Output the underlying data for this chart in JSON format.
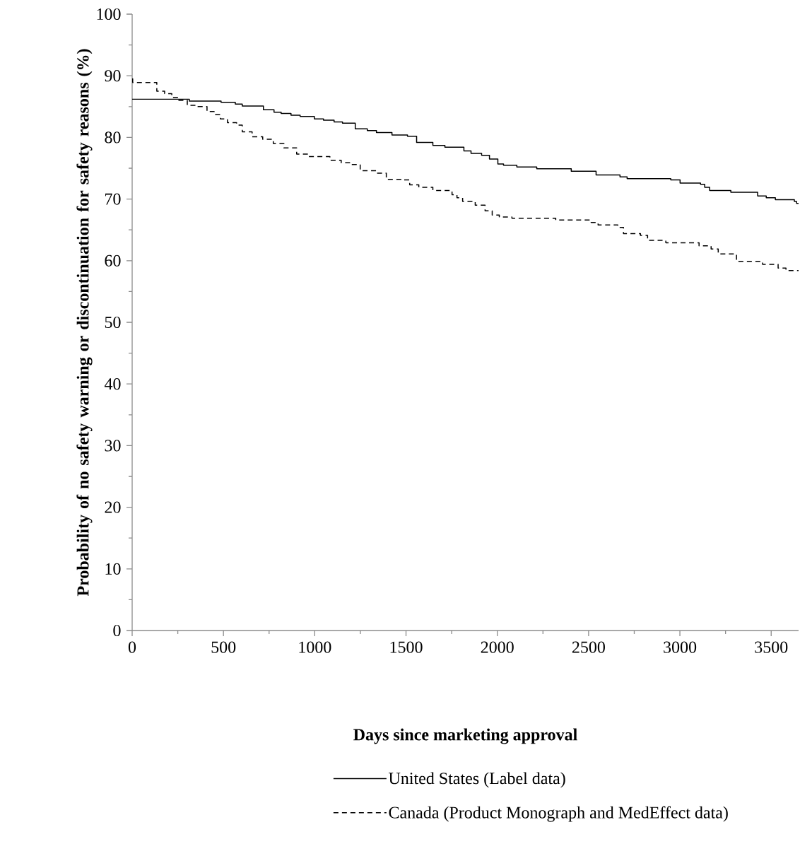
{
  "chart_data": {
    "type": "step",
    "xlabel": "Days since marketing approval",
    "ylabel": "Probability of no safety warning or discontinuation for safety reasons (%)",
    "xlim": [
      0,
      3650
    ],
    "ylim": [
      0,
      100
    ],
    "xticks": [
      0,
      {
        "value": 250,
        "label": null
      },
      500,
      {
        "value": 750,
        "label": null
      },
      1000,
      {
        "value": 1250,
        "label": null
      },
      1500,
      {
        "value": 1750,
        "label": null
      },
      2000,
      {
        "value": 2250,
        "label": null
      },
      2500,
      {
        "value": 2750,
        "label": null
      },
      3000,
      {
        "value": 3250,
        "label": null
      },
      3500
    ],
    "yticks": [
      0,
      {
        "value": 5,
        "label": null
      },
      10,
      {
        "value": 15,
        "label": null
      },
      20,
      {
        "value": 25,
        "label": null
      },
      30,
      {
        "value": 35,
        "label": null
      },
      40,
      {
        "value": 45,
        "label": null
      },
      50,
      {
        "value": 55,
        "label": null
      },
      60,
      {
        "value": 65,
        "label": null
      },
      70,
      {
        "value": 75,
        "label": null
      },
      80,
      {
        "value": 85,
        "label": null
      },
      90,
      {
        "value": 95,
        "label": null
      },
      100
    ],
    "grid": false,
    "legend": "bottom",
    "marker": "none",
    "series": [
      {
        "name": "United States (Label data)",
        "color": "#000000",
        "line_style": "solid",
        "x": [
          0,
          313,
          487,
          565,
          603,
          719,
          777,
          816,
          870,
          920,
          998,
          1048,
          1106,
          1152,
          1222,
          1288,
          1338,
          1423,
          1508,
          1558,
          1647,
          1713,
          1817,
          1856,
          1914,
          1957,
          2003,
          2034,
          2107,
          2216,
          2405,
          2541,
          2672,
          2711,
          2950,
          3001,
          3113,
          3136,
          3163,
          3279,
          3426,
          3473,
          3523,
          3627,
          3639,
          3650
        ],
        "values": [
          86.2,
          85.9,
          85.7,
          85.4,
          85.1,
          84.5,
          84.1,
          83.9,
          83.6,
          83.4,
          83.0,
          82.8,
          82.5,
          82.3,
          81.4,
          81.1,
          80.8,
          80.4,
          80.2,
          79.2,
          78.7,
          78.4,
          77.8,
          77.4,
          77.1,
          76.5,
          75.7,
          75.5,
          75.2,
          74.9,
          74.5,
          73.9,
          73.6,
          73.3,
          73.1,
          72.6,
          72.4,
          71.9,
          71.4,
          71.1,
          70.5,
          70.2,
          69.9,
          69.6,
          69.3,
          69.3
        ]
      },
      {
        "name": "Canada (Product Monograph and MedEffect data)",
        "color": "#000000",
        "line_style": "dashed",
        "x": [
          0,
          3,
          135,
          178,
          217,
          251,
          302,
          360,
          410,
          449,
          483,
          522,
          572,
          603,
          657,
          715,
          773,
          831,
          901,
          967,
          1083,
          1145,
          1199,
          1249,
          1338,
          1392,
          1481,
          1520,
          1570,
          1647,
          1752,
          1779,
          1810,
          1879,
          1933,
          1972,
          2011,
          2080,
          2320,
          2514,
          2552,
          2660,
          2691,
          2784,
          2823,
          2923,
          3105,
          3171,
          3210,
          3310,
          3453,
          3538,
          3581,
          3650
        ],
        "values": [
          89.5,
          88.9,
          87.5,
          87.1,
          86.5,
          86.0,
          85.2,
          85.0,
          84.2,
          83.7,
          83.0,
          82.4,
          82.0,
          80.9,
          80.1,
          79.7,
          79.0,
          78.3,
          77.3,
          76.9,
          76.3,
          75.9,
          75.6,
          74.6,
          74.2,
          73.2,
          73.1,
          72.3,
          71.9,
          71.4,
          70.7,
          70.2,
          69.6,
          69.0,
          68.1,
          67.4,
          67.1,
          66.9,
          66.6,
          66.2,
          65.8,
          65.4,
          64.4,
          64.1,
          63.3,
          62.9,
          62.4,
          61.9,
          61.1,
          59.9,
          59.4,
          58.8,
          58.4,
          58.4
        ]
      }
    ]
  }
}
